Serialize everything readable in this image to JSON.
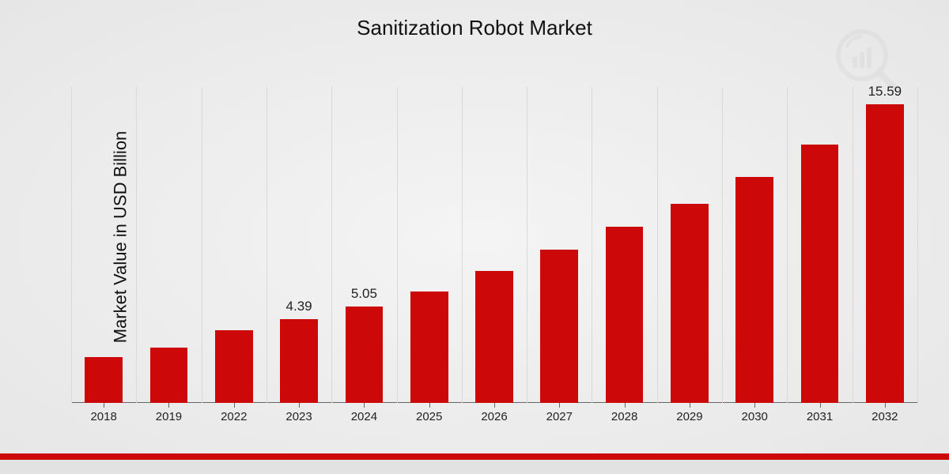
{
  "chart": {
    "type": "bar",
    "title": "Sanitization Robot Market",
    "title_fontsize": 26,
    "title_color": "#111111",
    "ylabel": "Market Value in USD Billion",
    "ylabel_fontsize": 22,
    "xtick_fontsize": 15,
    "bar_label_fontsize": 17,
    "categories": [
      "2018",
      "2019",
      "2022",
      "2023",
      "2024",
      "2025",
      "2026",
      "2027",
      "2028",
      "2029",
      "2030",
      "2031",
      "2032"
    ],
    "values": [
      2.4,
      2.9,
      3.8,
      4.39,
      5.05,
      5.8,
      6.9,
      8.0,
      9.2,
      10.4,
      11.8,
      13.5,
      15.59
    ],
    "show_labels": {
      "2023": "4.39",
      "2024": "5.05",
      "2032": "15.59"
    },
    "ylim": [
      0,
      16.5
    ],
    "bar_color": "#cc0808",
    "bar_width_ratio": 0.58,
    "background": "radial-gradient(#f4f4f4,#e6e6e6)",
    "grid_color": "#d9d9d9",
    "axis_color": "#666666",
    "footer_gray": "#e2e2e2",
    "footer_red": "#cc0808",
    "watermark_color": "#b0b0b0"
  }
}
